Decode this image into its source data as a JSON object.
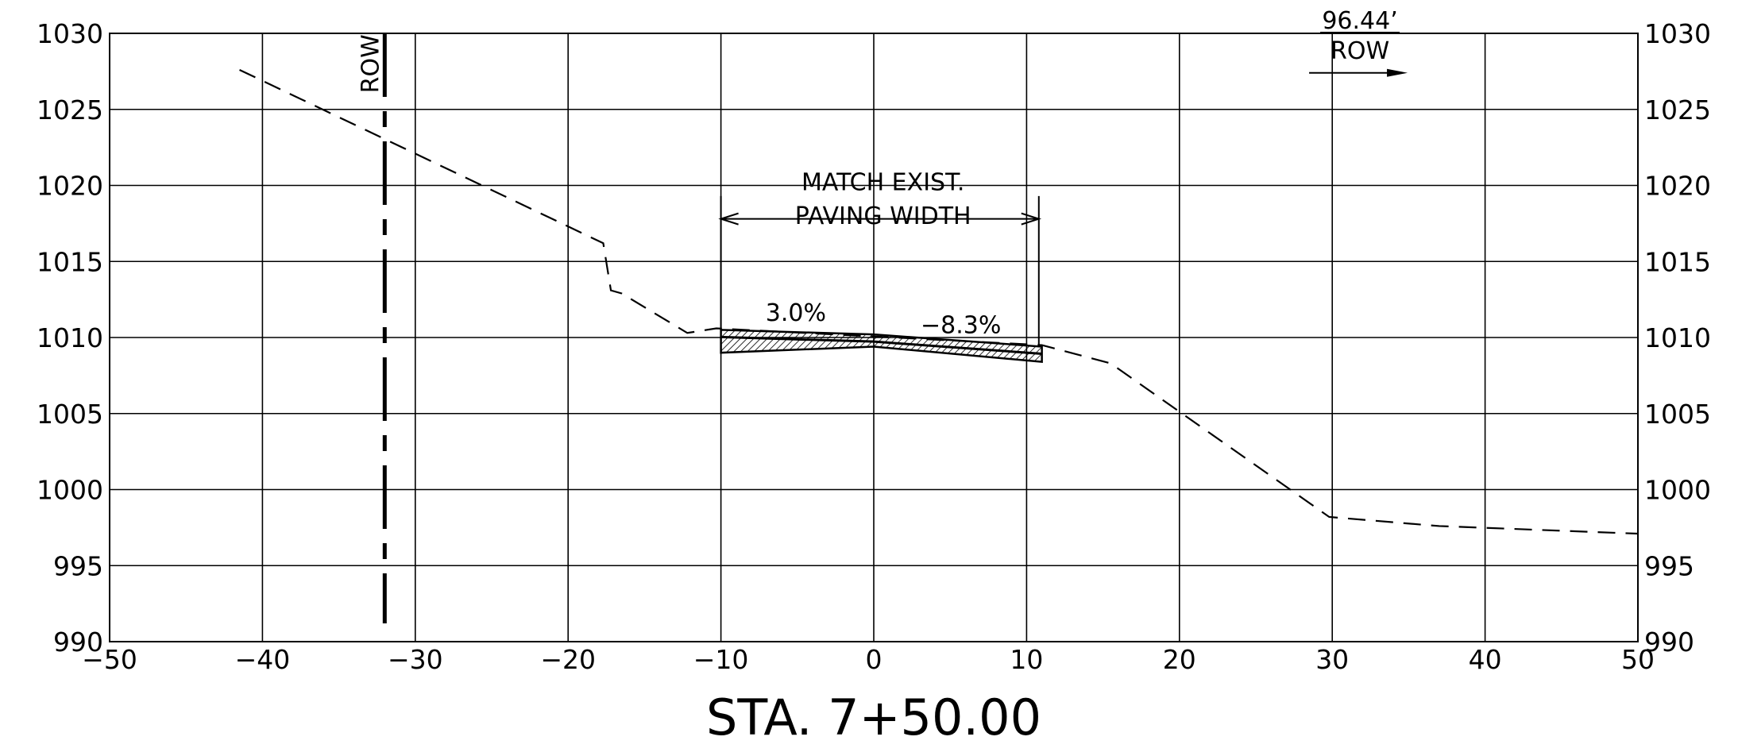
{
  "chart_data": {
    "type": "line",
    "title": "STA. 7+50.00",
    "xlim": [
      -50,
      50
    ],
    "ylim": [
      990,
      1030
    ],
    "x_ticks": [
      -50,
      -40,
      -30,
      -20,
      -10,
      0,
      10,
      20,
      30,
      40,
      50
    ],
    "y_ticks": [
      990,
      995,
      1000,
      1005,
      1010,
      1015,
      1020,
      1025,
      1030
    ],
    "x_tick_labels": [
      "−50",
      "−40",
      "−30",
      "−20",
      "−10",
      "0",
      "10",
      "20",
      "30",
      "40",
      "50"
    ],
    "y_tick_labels": [
      "990",
      "995",
      "1000",
      "1005",
      "1010",
      "1015",
      "1020",
      "1025",
      "1030"
    ],
    "grid": true,
    "series": [
      {
        "style": "dashed",
        "x": [
          -41.5,
          -17.7,
          -17.2,
          -16.5,
          -12.2,
          -10.3,
          11,
          15.5,
          29.8,
          37,
          50
        ],
        "y": [
          1027.6,
          1016.2,
          1013.1,
          1012.9,
          1010.3,
          1010.6,
          1009.5,
          1008.3,
          998.2,
          997.6,
          997.1
        ]
      }
    ],
    "pavement": {
      "top_x": [
        -10,
        0,
        11
      ],
      "top_y": [
        1010.5,
        1010.2,
        1009.4
      ],
      "bottom_x": [
        -10,
        0,
        11
      ],
      "bottom_y": [
        1009.0,
        1009.4,
        1008.4
      ]
    },
    "row_left": {
      "x": 0,
      "offset": -32,
      "y_top": 1030,
      "y_bottom": 991.2,
      "label": "ROW"
    },
    "row_right": {
      "distance_label": "96.44’",
      "label": "ROW"
    },
    "annotations": {
      "match_line1": "MATCH EXIST.",
      "match_line2": "PAVING WIDTH",
      "match_x_start": -10,
      "match_x_end": 10.8,
      "match_y": 1017.8,
      "slope_left": "3.0%",
      "slope_right": "−8.3%"
    }
  }
}
